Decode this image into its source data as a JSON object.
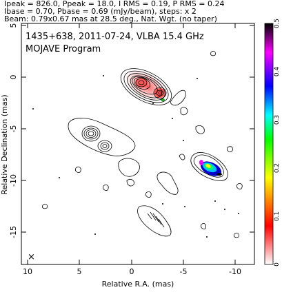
{
  "header": {
    "line1": "Ipeak = 826.0, Ppeak = 18.0, I RMS = 0.19, P RMS = 0.24",
    "line2": "Ibase = 0.70, Pbase = 0.69 (mJy/beam), steps: x 2",
    "line3": "Beam: 0.79x0.67 mas at 28.5 deg., Nat. Wgt. (no taper)"
  },
  "panel": {
    "title": "1435+638, 2011-07-24, VLBA 15.4 GHz",
    "subtitle": "MOJAVE Program",
    "xlabel": "Relative R.A. (mas)",
    "ylabel": "Relative Declination (mas)",
    "x_ticks": [
      "10",
      "5",
      "0",
      "-5",
      "-10"
    ],
    "y_ticks": [
      "5",
      "0",
      "-5",
      "-10",
      "-15"
    ],
    "x_range": [
      10,
      -12.5
    ],
    "y_range": [
      -18.3,
      5
    ],
    "beam_marker": "×"
  },
  "colorbar": {
    "ticks": [
      "0.5",
      "0.4",
      "0.3",
      "0.2",
      "0.1",
      "0"
    ],
    "range": [
      0,
      0.5
    ],
    "colors": [
      "#ffffff",
      "#ff0000",
      "#ffff00",
      "#00ff00",
      "#00ffff",
      "#0000ff",
      "#ff00ff",
      "#000000"
    ]
  }
}
